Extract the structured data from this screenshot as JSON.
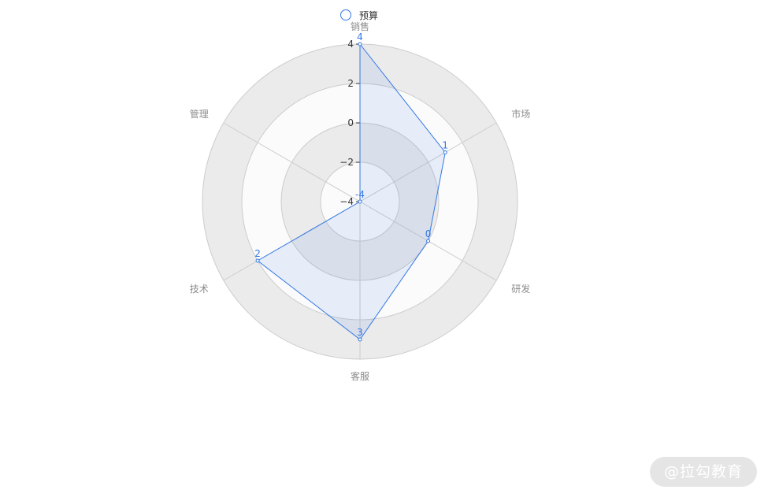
{
  "legend": {
    "label": "预算"
  },
  "watermark": "@拉勾教育",
  "colors": {
    "series": "#3478e6",
    "area": "rgba(52,120,230,0.10)",
    "ring_gray": "#ebebeb",
    "ring_light": "#fbfbfb",
    "axis": "#cccccc",
    "label": "#8c8c8c"
  },
  "chart_data": {
    "type": "radar",
    "indicators": [
      "销售",
      "市场",
      "研发",
      "客服",
      "技术",
      "管理"
    ],
    "scale": {
      "min": -4,
      "max": 4,
      "ticks": [
        4,
        2,
        0,
        -2,
        -4
      ]
    },
    "series": [
      {
        "name": "预算",
        "values": [
          4,
          1,
          0,
          3,
          2,
          -4
        ]
      }
    ],
    "legend_position": "top-center"
  }
}
